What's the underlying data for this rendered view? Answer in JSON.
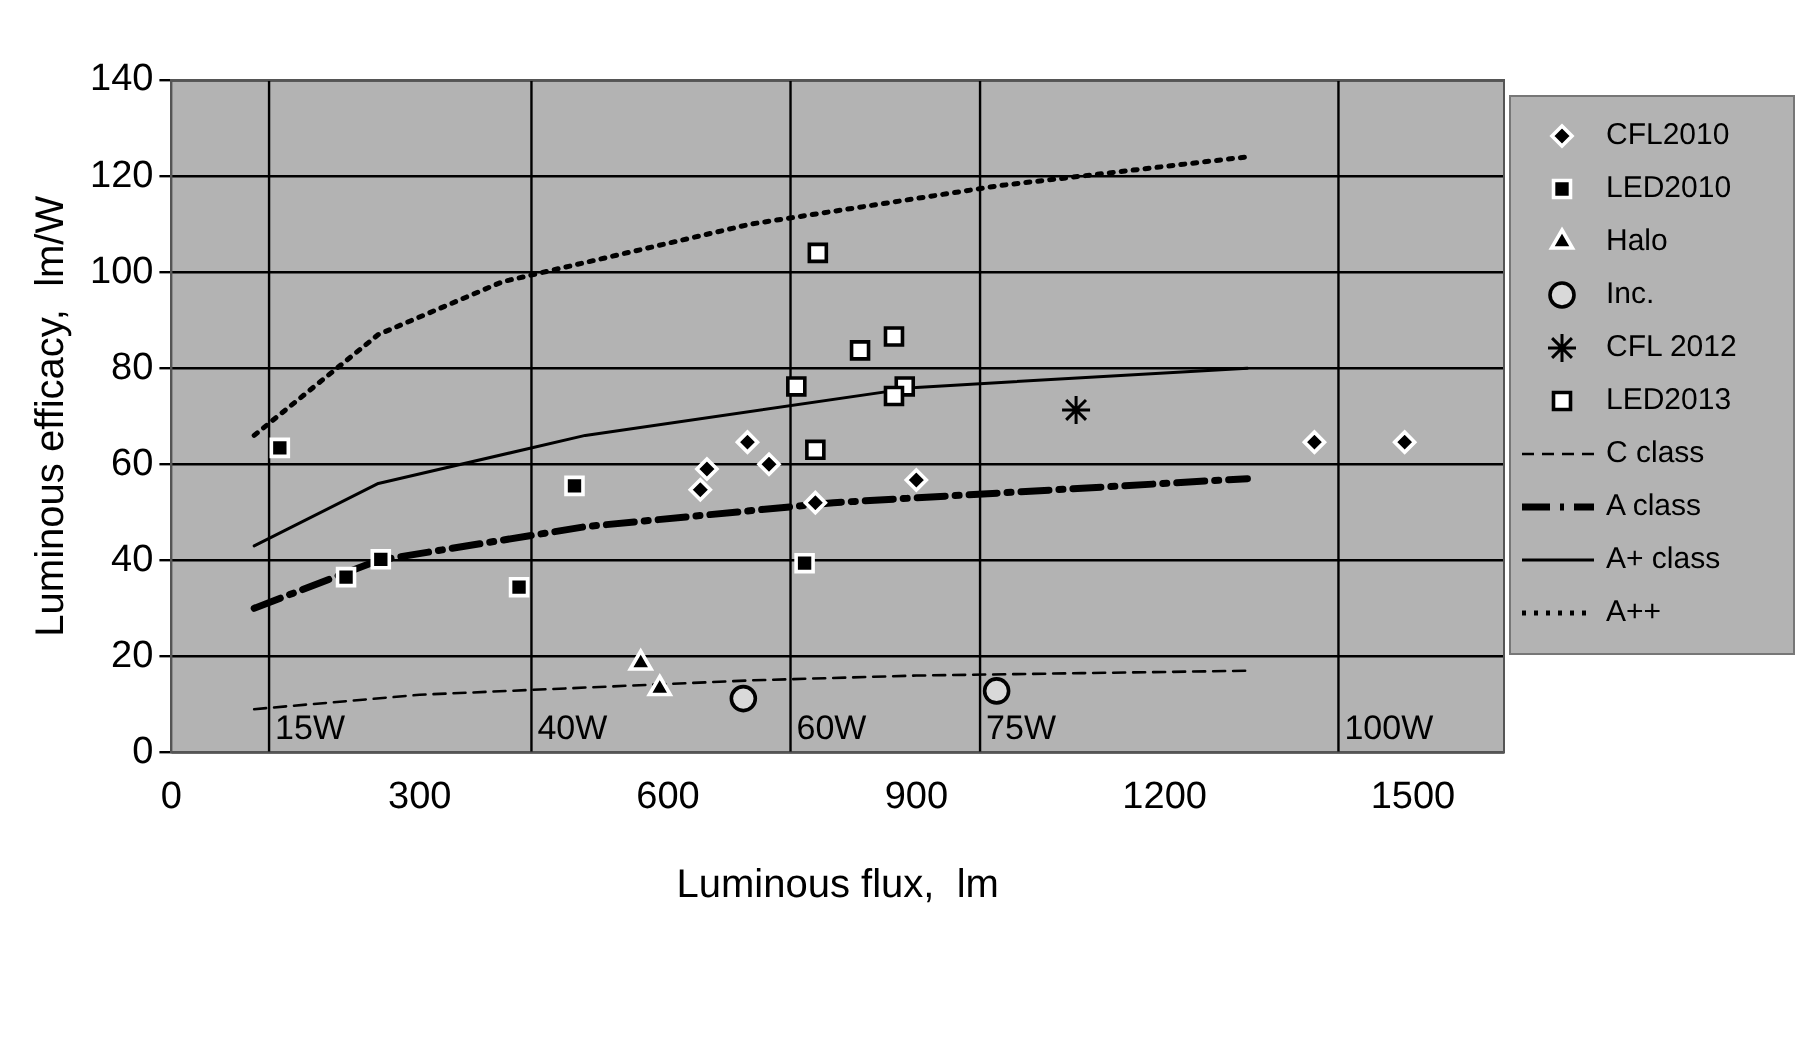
{
  "chart_data": {
    "type": "scatter",
    "xlabel": "Luminous flux,  lm",
    "ylabel": "Luminous efficacy,  lm/W",
    "xlim": [
      0,
      1610
    ],
    "xticks": [
      0,
      300,
      600,
      900,
      1200,
      1500
    ],
    "ylim": [
      0,
      140
    ],
    "yticks": [
      0,
      20,
      40,
      60,
      80,
      100,
      120,
      140
    ],
    "grid": "y",
    "legend": "right",
    "ref_lines": [
      {
        "axis": "x",
        "value": 118,
        "label": "15W",
        "color": "#000000"
      },
      {
        "axis": "x",
        "value": 435,
        "label": "40W",
        "color": "#000000"
      },
      {
        "axis": "x",
        "value": 748,
        "label": "60W",
        "color": "#000000"
      },
      {
        "axis": "x",
        "value": 977,
        "label": "75W",
        "color": "#000000"
      },
      {
        "axis": "x",
        "value": 1410,
        "label": "100W",
        "color": "#000000"
      }
    ],
    "series": [
      {
        "name": "CFL2010",
        "marker": "diamond",
        "color": "#000000",
        "x": [
          639,
          647,
          696,
          722,
          778,
          900,
          1381,
          1490
        ],
        "values": [
          54.7,
          59,
          64.6,
          60,
          52,
          56.7,
          64.6,
          64.6
        ]
      },
      {
        "name": "LED2010",
        "marker": "square",
        "color": "#000000",
        "x": [
          131,
          211,
          253,
          420,
          487,
          765
        ],
        "values": [
          63.4,
          36.5,
          40.2,
          34.4,
          55.5,
          39.4
        ]
      },
      {
        "name": "Halo",
        "marker": "triangle",
        "color": "#000000",
        "x": [
          567,
          590
        ],
        "values": [
          18.6,
          13.3
        ]
      },
      {
        "name": "Inc.",
        "marker": "circle",
        "color": "#d9d9d9",
        "x": [
          691,
          997
        ],
        "values": [
          11.2,
          12.8
        ]
      },
      {
        "name": "CFL 2012",
        "marker": "cross",
        "color": "#000000",
        "x": [
          1093
        ],
        "values": [
          71.3
        ]
      },
      {
        "name": "LED2013",
        "marker": "square",
        "color": "#ffffff",
        "x": [
          781,
          755,
          778,
          832,
          873,
          886,
          873
        ],
        "values": [
          104,
          76.2,
          63,
          83.7,
          86.6,
          76.2,
          74.2
        ]
      },
      {
        "name": "C class",
        "type": "line",
        "line_style": "dashed",
        "color": "#000000",
        "x": [
          100,
          300,
          500,
          700,
          900,
          1100,
          1300
        ],
        "values": [
          9,
          12,
          13.5,
          15,
          16,
          16.5,
          17
        ]
      },
      {
        "name": "A class",
        "type": "line",
        "line_style": "dashdot",
        "color": "#000000",
        "x": [
          100,
          250,
          500,
          800,
          1000,
          1300
        ],
        "values": [
          30,
          40,
          47,
          52,
          54,
          57
        ]
      },
      {
        "name": "A+ class",
        "type": "line",
        "line_style": "solid",
        "color": "#000000",
        "x": [
          100,
          250,
          500,
          900,
          1300
        ],
        "values": [
          43,
          56,
          66,
          76,
          80
        ]
      },
      {
        "name": "A++",
        "type": "line",
        "line_style": "dotted",
        "color": "#000000",
        "x": [
          100,
          200,
          250,
          400,
          500,
          700,
          1000,
          1300
        ],
        "values": [
          66,
          80,
          87,
          98,
          102,
          110,
          118,
          124
        ]
      }
    ]
  }
}
